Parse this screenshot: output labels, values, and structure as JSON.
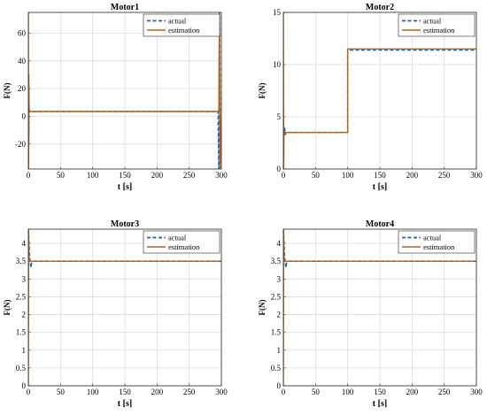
{
  "chart_data": [
    {
      "type": "line",
      "title": "Motor1",
      "xlabel": "t [s]",
      "ylabel": "F(N)",
      "xlim": [
        0,
        300
      ],
      "ylim": [
        -38,
        75
      ],
      "xticks": [
        0,
        50,
        100,
        150,
        200,
        250,
        300
      ],
      "yticks": [
        -20,
        0,
        20,
        40,
        60
      ],
      "grid": true,
      "legend": "top-right",
      "series": [
        {
          "name": "actual",
          "color": "#1f5fb4",
          "dash": true,
          "x": [
            0,
            0.3,
            0.6,
            1,
            1.5,
            2,
            3,
            5,
            10,
            100,
            200,
            250,
            295,
            296,
            297,
            298,
            300
          ],
          "y": [
            -38,
            20,
            -20,
            10,
            5,
            3.5,
            3.5,
            3.5,
            3.5,
            3.5,
            3.5,
            3.5,
            3.5,
            -38,
            75,
            3.5,
            3.5
          ]
        },
        {
          "name": "estimation",
          "color": "#b5651d",
          "dash": false,
          "x": [
            0,
            0.4,
            0.8,
            1.2,
            2,
            3,
            5,
            100,
            200,
            250,
            296,
            297,
            298,
            300
          ],
          "y": [
            75,
            -38,
            30,
            3.5,
            3.5,
            3.5,
            3.5,
            3.5,
            3.5,
            3.5,
            3.5,
            75,
            -38,
            3.5
          ]
        }
      ]
    },
    {
      "type": "line",
      "title": "Motor2",
      "xlabel": "t [s]",
      "ylabel": "F(N)",
      "xlim": [
        0,
        300
      ],
      "ylim": [
        0,
        15
      ],
      "xticks": [
        0,
        50,
        100,
        150,
        200,
        250,
        300
      ],
      "yticks": [
        0,
        5,
        10,
        15
      ],
      "grid": true,
      "legend": "top-right",
      "series": [
        {
          "name": "actual",
          "color": "#1f5fb4",
          "dash": true,
          "x": [
            0,
            1,
            2,
            3,
            4,
            5,
            100,
            100.01,
            300
          ],
          "y": [
            4.2,
            3.2,
            3.9,
            3.3,
            3.5,
            3.5,
            3.5,
            11.4,
            11.4
          ]
        },
        {
          "name": "estimation",
          "color": "#b5651d",
          "dash": false,
          "x": [
            0,
            0.5,
            1,
            2,
            3,
            100,
            100.01,
            300
          ],
          "y": [
            15,
            0,
            3.5,
            3.5,
            3.5,
            3.5,
            11.5,
            11.5
          ]
        }
      ]
    },
    {
      "type": "line",
      "title": "Motor3",
      "xlabel": "t [s]",
      "ylabel": "F(N)",
      "xlim": [
        0,
        300
      ],
      "ylim": [
        0,
        4.4
      ],
      "xticks": [
        0,
        50,
        100,
        150,
        200,
        250,
        300
      ],
      "yticks": [
        0,
        0.5,
        1,
        1.5,
        2,
        2.5,
        3,
        3.5,
        4
      ],
      "grid": true,
      "legend": "top-right",
      "series": [
        {
          "name": "actual",
          "color": "#1f5fb4",
          "dash": true,
          "x": [
            0,
            1,
            2,
            3,
            4,
            5,
            8,
            300
          ],
          "y": [
            4.4,
            4.0,
            3.6,
            3.45,
            3.32,
            3.45,
            3.5,
            3.5
          ]
        },
        {
          "name": "estimation",
          "color": "#b5651d",
          "dash": false,
          "x": [
            0,
            0.4,
            0.8,
            1.5,
            3,
            300
          ],
          "y": [
            0,
            4.4,
            3.8,
            3.5,
            3.5,
            3.5
          ]
        }
      ]
    },
    {
      "type": "line",
      "title": "Motor4",
      "xlabel": "t [s]",
      "ylabel": "F(N)",
      "xlim": [
        0,
        300
      ],
      "ylim": [
        0,
        4.4
      ],
      "xticks": [
        0,
        50,
        100,
        150,
        200,
        250,
        300
      ],
      "yticks": [
        0,
        0.5,
        1,
        1.5,
        2,
        2.5,
        3,
        3.5,
        4
      ],
      "grid": true,
      "legend": "top-right",
      "series": [
        {
          "name": "actual",
          "color": "#1f5fb4",
          "dash": true,
          "x": [
            0,
            1,
            2,
            3,
            4,
            5,
            8,
            300
          ],
          "y": [
            4.4,
            4.0,
            3.6,
            3.45,
            3.32,
            3.45,
            3.5,
            3.5
          ]
        },
        {
          "name": "estimation",
          "color": "#b5651d",
          "dash": false,
          "x": [
            0,
            0.4,
            0.8,
            1.5,
            3,
            300
          ],
          "y": [
            0,
            4.4,
            3.8,
            3.5,
            3.5,
            3.5
          ]
        }
      ]
    }
  ]
}
